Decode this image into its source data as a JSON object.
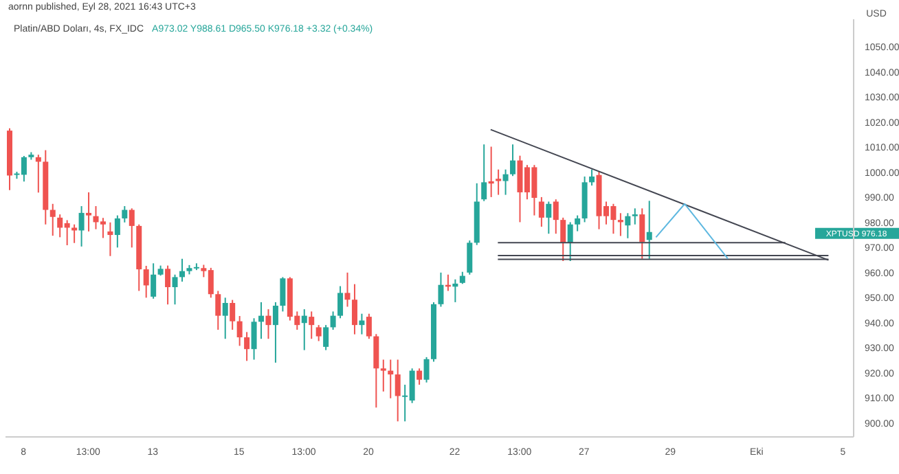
{
  "chart_data": {
    "type": "candlestick",
    "title": "Platin/ABD Doları, 4s, FX_IDC",
    "subtitle": "aornn published, Eyl 28, 2021 16:43 UTC+3",
    "ylabel": "USD",
    "annotations": [
      "A973.02 Y988.61 D965.50 K976.18 +3.32 (+0.34%)",
      "XPTUSD 976.18"
    ],
    "categories": [
      null,
      null,
      "8",
      null,
      null,
      null,
      null,
      null,
      null,
      null,
      null,
      "13:00",
      null,
      null,
      null,
      null,
      null,
      null,
      null,
      null,
      "13",
      null,
      null,
      null,
      null,
      null,
      null,
      null,
      null,
      null,
      null,
      null,
      "15",
      null,
      null,
      null,
      null,
      null,
      null,
      null,
      null,
      "13:00",
      null,
      null,
      null,
      null,
      null,
      null,
      null,
      null,
      "20",
      null,
      null,
      null,
      null,
      null,
      null,
      null,
      null,
      null,
      null,
      null,
      "22",
      null,
      null,
      null,
      null,
      null,
      null,
      null,
      null,
      "13:00",
      null,
      null,
      null,
      null,
      null,
      null,
      null,
      null,
      "27",
      null,
      null,
      null,
      null,
      null,
      null,
      null,
      null,
      null,
      null,
      null,
      "29",
      null,
      null,
      null,
      null,
      null,
      null,
      null,
      null,
      null,
      null,
      null,
      "Eki",
      null,
      null,
      null,
      null,
      null,
      null,
      null,
      null,
      null,
      null,
      null,
      "5",
      null
    ],
    "ohlc": [
      [
        1016.6,
        1017.5,
        992.9,
        998.7
      ],
      [
        999,
        1000.2,
        997.4,
        999.5
      ],
      [
        999,
        1006.5,
        996.3,
        1006
      ],
      [
        1006,
        1008,
        1005,
        1007
      ],
      [
        1006,
        1007,
        991.9,
        1004.2
      ],
      [
        1004.2,
        1008.8,
        979.2,
        985
      ],
      [
        985,
        987.4,
        974.7,
        982.2
      ],
      [
        981.9,
        983.2,
        974.1,
        977.9
      ],
      [
        979.7,
        980.9,
        970.9,
        977.9
      ],
      [
        977.9,
        979.2,
        971.8,
        976.8
      ],
      [
        976.8,
        986.5,
        970.4,
        983.8
      ],
      [
        983.8,
        992,
        976.4,
        982.8
      ],
      [
        982.5,
        986.5,
        977.3,
        980.1
      ],
      [
        980.4,
        981.8,
        973.8,
        979.2
      ],
      [
        976.4,
        980,
        966.6,
        975
      ],
      [
        975,
        982.8,
        970,
        981.6
      ],
      [
        981.6,
        986.5,
        980,
        985
      ],
      [
        985,
        985.6,
        970,
        978.6
      ],
      [
        978.6,
        979.2,
        952.7,
        961.3
      ],
      [
        961.3,
        962.7,
        950,
        954.9
      ],
      [
        950.4,
        963.7,
        949.6,
        959.2
      ],
      [
        959.2,
        962.8,
        958.8,
        961.5
      ],
      [
        961.5,
        962.8,
        947.3,
        954.2
      ],
      [
        954.2,
        959.2,
        947.3,
        958.2
      ],
      [
        958.2,
        965.5,
        956.4,
        960.6
      ],
      [
        960.6,
        963,
        959.3,
        961.8
      ],
      [
        961.8,
        963.7,
        961,
        962.2
      ],
      [
        961.8,
        963.1,
        958.2,
        960.6
      ],
      [
        961,
        961.9,
        950,
        951.4
      ],
      [
        951.4,
        952.7,
        937.2,
        942.8
      ],
      [
        942.8,
        950,
        933.6,
        947.9
      ],
      [
        947.9,
        949.1,
        937.2,
        940.6
      ],
      [
        940.6,
        942.7,
        930.8,
        934.2
      ],
      [
        934.2,
        936.3,
        924.8,
        929.5
      ],
      [
        929.5,
        941.8,
        925.3,
        940.4
      ],
      [
        940.4,
        948.2,
        933.6,
        942.8
      ],
      [
        942.8,
        945.4,
        933.6,
        939.1
      ],
      [
        939.1,
        948.2,
        924.1,
        946.8
      ],
      [
        946.8,
        958.2,
        944.5,
        957.7
      ],
      [
        957.7,
        958.2,
        940.9,
        942.4
      ],
      [
        942.8,
        944.5,
        937.2,
        939.1
      ],
      [
        939.9,
        945.4,
        929.1,
        942.8
      ],
      [
        942.4,
        944.5,
        933.6,
        939.1
      ],
      [
        938.2,
        939.1,
        932.7,
        934.6
      ],
      [
        930.4,
        939.1,
        929.1,
        938.2
      ],
      [
        938.2,
        944.5,
        937.2,
        942.8
      ],
      [
        942.8,
        954.6,
        941.8,
        951.9
      ],
      [
        951.9,
        960,
        946.4,
        949.2
      ],
      [
        949.2,
        955.4,
        935.4,
        939.1
      ],
      [
        939.1,
        943.6,
        935.4,
        940.9
      ],
      [
        942.4,
        943.6,
        933.6,
        934.6
      ],
      [
        934.6,
        935.5,
        906.2,
        921.8
      ],
      [
        921.8,
        925.3,
        912.6,
        920.9
      ],
      [
        920.9,
        925.3,
        909.9,
        919.4
      ],
      [
        919.4,
        925.3,
        900.7,
        910.8
      ],
      [
        910.8,
        915.3,
        900.7,
        911
      ],
      [
        909,
        921.8,
        908,
        920.9
      ],
      [
        920.9,
        921.8,
        915.3,
        917.3
      ],
      [
        917.3,
        926.3,
        916.2,
        925.5
      ],
      [
        925.5,
        948.2,
        924.5,
        947.4
      ],
      [
        947.4,
        960,
        946.4,
        955.1
      ],
      [
        955.1,
        959.2,
        952.7,
        954.4
      ],
      [
        954.4,
        957.3,
        948.2,
        955.6
      ],
      [
        955.9,
        960.3,
        955.5,
        958.7
      ],
      [
        960,
        972.8,
        959.2,
        971.9
      ],
      [
        971.9,
        995.6,
        971,
        988.3
      ],
      [
        989.2,
        1011.1,
        988.5,
        996
      ],
      [
        996.4,
        1010.2,
        990.1,
        995.5
      ],
      [
        997.4,
        1001.1,
        991,
        996.5
      ],
      [
        996.5,
        1001.1,
        991,
        999.2
      ],
      [
        999.2,
        1011.1,
        998.5,
        1004.7
      ],
      [
        1004.7,
        1006.6,
        980.1,
        992
      ],
      [
        1002,
        1002.9,
        989.2,
        992
      ],
      [
        1002,
        1002.9,
        982.8,
        989.8
      ],
      [
        988.3,
        990.1,
        978.3,
        981.9
      ],
      [
        981.9,
        988.3,
        975.5,
        987.4
      ],
      [
        988.3,
        989.2,
        975.5,
        981
      ],
      [
        981,
        981.9,
        964.6,
        971.9
      ],
      [
        971.9,
        980.1,
        964.6,
        979.2
      ],
      [
        979.2,
        982.8,
        976.5,
        981.6
      ],
      [
        981.6,
        998.3,
        980.1,
        996
      ],
      [
        996,
        1001.1,
        994.7,
        998.3
      ],
      [
        998.9,
        1000.2,
        977.3,
        982.5
      ],
      [
        986.5,
        988.3,
        979.2,
        982.5
      ],
      [
        986.5,
        987.4,
        975.5,
        981
      ],
      [
        981,
        983.7,
        974.6,
        980.1
      ],
      [
        978.8,
        983.7,
        973.7,
        982.5
      ],
      [
        982.5,
        985.6,
        979.2,
        983.2
      ],
      [
        983.2,
        985.6,
        965.5,
        972.2
      ],
      [
        973.02,
        988.61,
        965.5,
        976.18
      ],
      null,
      null,
      null,
      null,
      null,
      null,
      null,
      null,
      null,
      null,
      null,
      null,
      null,
      null,
      null,
      null,
      null,
      null,
      null,
      null,
      null,
      null,
      null,
      null,
      null,
      null,
      null,
      null
    ],
    "colors": [
      "#ef5350",
      "#26a69a",
      "#26a69a",
      "#26a69a",
      "#ef5350",
      "#ef5350",
      "#ef5350",
      "#ef5350",
      "#ef5350",
      "#ef5350",
      "#26a69a",
      "#ef5350",
      "#ef5350",
      "#ef5350",
      "#ef5350",
      "#26a69a",
      "#26a69a",
      "#ef5350",
      "#ef5350",
      "#ef5350",
      "#26a69a",
      "#26a69a",
      "#ef5350",
      "#26a69a",
      "#26a69a",
      "#26a69a",
      "#26a69a",
      "#ef5350",
      "#ef5350",
      "#ef5350",
      "#26a69a",
      "#ef5350",
      "#ef5350",
      "#ef5350",
      "#26a69a",
      "#26a69a",
      "#ef5350",
      "#26a69a",
      "#26a69a",
      "#ef5350",
      "#ef5350",
      "#26a69a",
      "#ef5350",
      "#ef5350",
      "#26a69a",
      "#26a69a",
      "#26a69a",
      "#ef5350",
      "#ef5350",
      "#26a69a",
      "#ef5350",
      "#ef5350",
      "#ef5350",
      "#ef5350",
      "#ef5350",
      "#26a69a",
      "#26a69a",
      "#ef5350",
      "#26a69a",
      "#26a69a",
      "#26a69a",
      "#ef5350",
      "#26a69a",
      "#26a69a",
      "#26a69a",
      "#26a69a",
      "#26a69a",
      "#ef5350",
      "#ef5350",
      "#26a69a",
      "#26a69a",
      "#ef5350",
      "#ef5350",
      "#ef5350",
      "#ef5350",
      "#26a69a",
      "#ef5350",
      "#ef5350",
      "#26a69a",
      "#26a69a",
      "#26a69a",
      "#26a69a",
      "#ef5350",
      "#ef5350",
      "#ef5350",
      "#ef5350",
      "#26a69a",
      "#26a69a",
      "#ef5350",
      "#26a69a",
      null,
      null,
      null,
      null,
      null,
      null,
      null,
      null,
      null,
      null,
      null,
      null,
      null,
      null,
      null,
      null,
      null,
      null,
      null,
      null,
      null,
      null,
      null,
      null,
      null,
      null,
      null,
      null
    ],
    "series": [
      {
        "type": "line",
        "color": "#434651",
        "values": [
          null,
          null,
          null,
          null,
          null,
          null,
          null,
          null,
          null,
          null,
          null,
          null,
          null,
          null,
          null,
          null,
          null,
          null,
          null,
          null,
          null,
          null,
          null,
          null,
          null,
          null,
          null,
          null,
          null,
          null,
          null,
          null,
          null,
          null,
          null,
          null,
          null,
          null,
          null,
          null,
          null,
          null,
          null,
          null,
          null,
          null,
          null,
          null,
          null,
          null,
          null,
          null,
          null,
          null,
          null,
          null,
          null,
          null,
          null,
          null,
          null,
          null,
          null,
          null,
          null,
          null,
          null,
          1017,
          null,
          null,
          null,
          null,
          null,
          null,
          null,
          null,
          null,
          null,
          null,
          null,
          null,
          null,
          null,
          null,
          null,
          null,
          null,
          null,
          null,
          null,
          null,
          null,
          null,
          null,
          null,
          null,
          null,
          null,
          null,
          null,
          null,
          null,
          null,
          null,
          null,
          null,
          null,
          null,
          null,
          null,
          null,
          null,
          null,
          null,
          965,
          null,
          null,
          null
        ]
      },
      {
        "type": "line",
        "color": "#434651",
        "values": [
          null,
          null,
          null,
          null,
          null,
          null,
          null,
          null,
          null,
          null,
          null,
          null,
          null,
          null,
          null,
          null,
          null,
          null,
          null,
          null,
          null,
          null,
          null,
          null,
          null,
          null,
          null,
          null,
          null,
          null,
          null,
          null,
          null,
          null,
          null,
          null,
          null,
          null,
          null,
          null,
          null,
          null,
          null,
          null,
          null,
          null,
          null,
          null,
          null,
          null,
          null,
          null,
          null,
          null,
          null,
          null,
          null,
          null,
          null,
          null,
          null,
          null,
          null,
          null,
          null,
          null,
          null,
          null,
          971.9,
          null,
          null,
          null,
          null,
          null,
          null,
          null,
          null,
          null,
          null,
          null,
          null,
          null,
          null,
          null,
          null,
          null,
          null,
          null,
          null,
          null,
          null,
          null,
          null,
          null,
          null,
          null,
          null,
          null,
          null,
          null,
          null,
          null,
          null,
          null,
          null,
          null,
          null,
          null,
          971.9,
          null,
          null,
          null,
          null,
          null,
          null,
          null,
          null,
          null
        ]
      },
      {
        "type": "line",
        "color": "#434651",
        "values": [
          null,
          null,
          null,
          null,
          null,
          null,
          null,
          null,
          null,
          null,
          null,
          null,
          null,
          null,
          null,
          null,
          null,
          null,
          null,
          null,
          null,
          null,
          null,
          null,
          null,
          null,
          null,
          null,
          null,
          null,
          null,
          null,
          null,
          null,
          null,
          null,
          null,
          null,
          null,
          null,
          null,
          null,
          null,
          null,
          null,
          null,
          null,
          null,
          null,
          null,
          null,
          null,
          null,
          null,
          null,
          null,
          null,
          null,
          null,
          null,
          null,
          null,
          null,
          null,
          null,
          null,
          null,
          null,
          966.8,
          null,
          null,
          null,
          null,
          null,
          null,
          null,
          null,
          null,
          null,
          null,
          null,
          null,
          null,
          null,
          null,
          null,
          null,
          null,
          null,
          null,
          null,
          null,
          null,
          null,
          null,
          null,
          null,
          null,
          null,
          null,
          null,
          null,
          null,
          null,
          null,
          null,
          null,
          null,
          null,
          null,
          null,
          null,
          null,
          null,
          966.8,
          null,
          null,
          null
        ]
      },
      {
        "type": "line",
        "color": "#434651",
        "values": [
          null,
          null,
          null,
          null,
          null,
          null,
          null,
          null,
          null,
          null,
          null,
          null,
          null,
          null,
          null,
          null,
          null,
          null,
          null,
          null,
          null,
          null,
          null,
          null,
          null,
          null,
          null,
          null,
          null,
          null,
          null,
          null,
          null,
          null,
          null,
          null,
          null,
          null,
          null,
          null,
          null,
          null,
          null,
          null,
          null,
          null,
          null,
          null,
          null,
          null,
          null,
          null,
          null,
          null,
          null,
          null,
          null,
          null,
          null,
          null,
          null,
          null,
          null,
          null,
          null,
          null,
          null,
          null,
          965.3,
          null,
          null,
          null,
          null,
          null,
          null,
          null,
          null,
          null,
          null,
          null,
          null,
          null,
          null,
          null,
          null,
          null,
          null,
          null,
          null,
          null,
          null,
          null,
          null,
          null,
          null,
          null,
          null,
          null,
          null,
          null,
          null,
          null,
          null,
          null,
          null,
          null,
          null,
          null,
          null,
          null,
          null,
          null,
          null,
          null,
          965.3,
          null,
          null,
          null
        ]
      },
      {
        "type": "line",
        "color": "#5eb8e0",
        "values": [
          null,
          null,
          null,
          null,
          null,
          null,
          null,
          null,
          null,
          null,
          null,
          null,
          null,
          null,
          null,
          null,
          null,
          null,
          null,
          null,
          null,
          null,
          null,
          null,
          null,
          null,
          null,
          null,
          null,
          null,
          null,
          null,
          null,
          null,
          null,
          null,
          null,
          null,
          null,
          null,
          null,
          null,
          null,
          null,
          null,
          null,
          null,
          null,
          null,
          null,
          null,
          null,
          null,
          null,
          null,
          null,
          null,
          null,
          null,
          null,
          null,
          null,
          null,
          null,
          null,
          null,
          null,
          null,
          null,
          null,
          null,
          null,
          null,
          null,
          null,
          null,
          null,
          null,
          null,
          null,
          null,
          null,
          null,
          null,
          null,
          null,
          null,
          null,
          null,
          null,
          974.1,
          null,
          null,
          null,
          987.4,
          null,
          null,
          null,
          null,
          null,
          965.5,
          null,
          null,
          null,
          null,
          null,
          null,
          null,
          null,
          null,
          null,
          null,
          null,
          null,
          null,
          null,
          null,
          null
        ]
      }
    ],
    "ylim": [
      894.5,
      1061
    ],
    "yticks": [
      {
        "value": 900,
        "label": "900.00"
      },
      {
        "value": 910,
        "label": "910.00"
      },
      {
        "value": 920,
        "label": "920.00"
      },
      {
        "value": 930,
        "label": "930.00"
      },
      {
        "value": 940,
        "label": "940.00"
      },
      {
        "value": 950,
        "label": "950.00"
      },
      {
        "value": 960,
        "label": "960.00"
      },
      {
        "value": 970,
        "label": "970.00"
      },
      {
        "value": 980,
        "label": "980.00"
      },
      {
        "value": 990,
        "label": "990.00"
      },
      {
        "value": 1000,
        "label": "1000.00"
      },
      {
        "value": 1010,
        "label": "1010.00"
      },
      {
        "value": 1020,
        "label": "1020.00"
      },
      {
        "value": 1030,
        "label": "1030.00"
      },
      {
        "value": 1040,
        "label": "1040.00"
      },
      {
        "value": 1050,
        "label": "1050.00"
      }
    ]
  }
}
